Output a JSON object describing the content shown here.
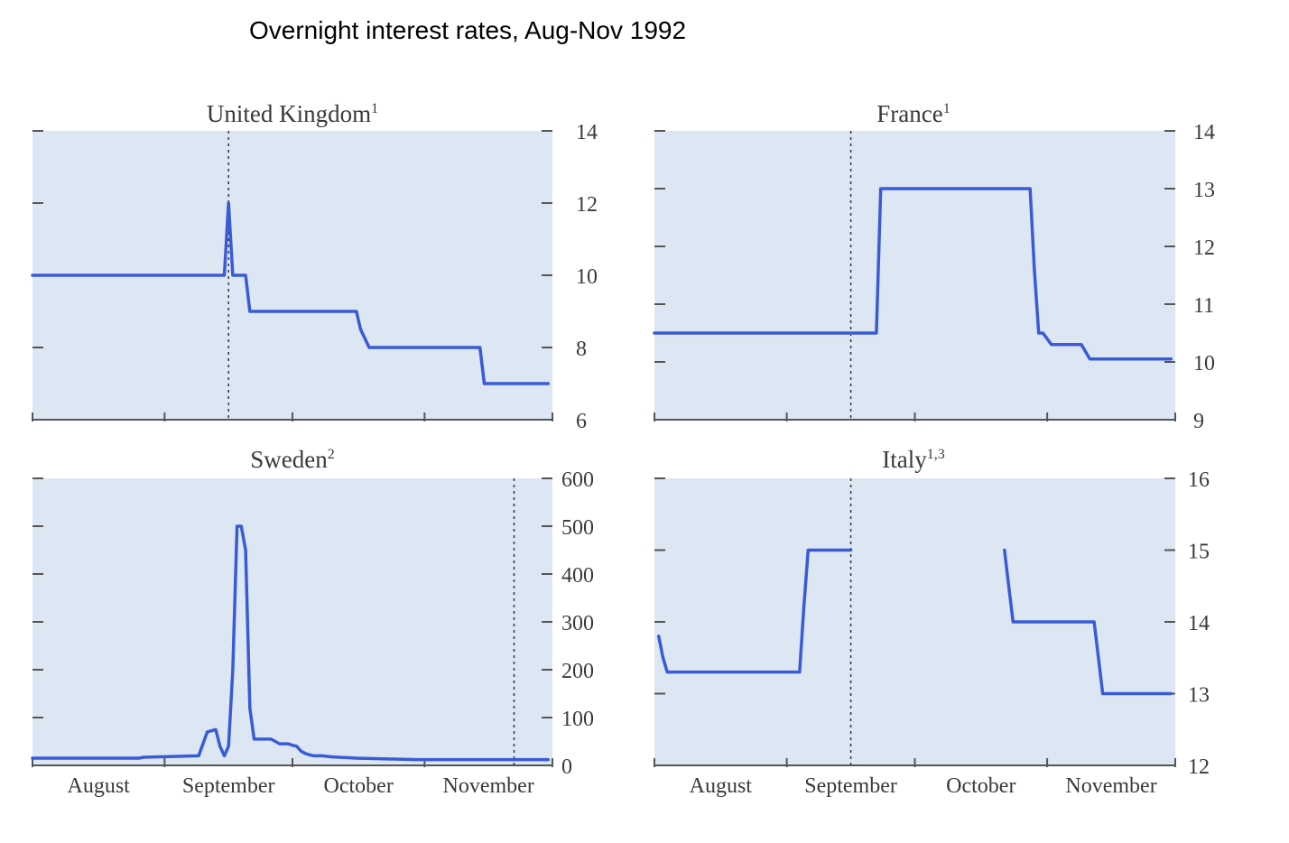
{
  "title": "Overnight interest rates, Aug-Nov 1992",
  "colors": {
    "line": "#3b5bd6",
    "plot_bg": "#dce7f3",
    "axis": "#555555",
    "text": "#3a3a3a"
  },
  "chart_data": [
    {
      "id": "uk",
      "type": "line",
      "title": "United Kingdom",
      "title_sup": "1",
      "x_unit": "day (0 = 1 Aug 1992)",
      "xlim": [
        0,
        122
      ],
      "month_boundaries": [
        0,
        31,
        61,
        92,
        122
      ],
      "months": [
        "August",
        "September",
        "October",
        "November"
      ],
      "month_labels_shown": false,
      "ylim": [
        6,
        14
      ],
      "yticks": [
        6,
        8,
        10,
        12,
        14
      ],
      "minor_yticks": [
        8,
        10,
        12,
        14
      ],
      "reference_x": 46,
      "x": [
        0,
        45,
        46,
        47,
        48,
        50,
        51,
        60,
        61,
        76,
        77,
        79,
        80,
        105,
        106,
        107,
        121
      ],
      "y": [
        10,
        10,
        12,
        10,
        10,
        10,
        9,
        9,
        9,
        9,
        8.5,
        8,
        8,
        8,
        7,
        7,
        7
      ]
    },
    {
      "id": "france",
      "type": "line",
      "title": "France",
      "title_sup": "1",
      "x_unit": "day (0 = 1 Aug 1992)",
      "xlim": [
        0,
        122
      ],
      "month_boundaries": [
        0,
        31,
        61,
        92,
        122
      ],
      "months": [
        "August",
        "September",
        "October",
        "November"
      ],
      "month_labels_shown": false,
      "ylim": [
        9,
        14
      ],
      "yticks": [
        9,
        10,
        11,
        12,
        13,
        14
      ],
      "minor_yticks": [
        10,
        11,
        12,
        13,
        14
      ],
      "reference_x": 46,
      "x": [
        0,
        52,
        53,
        88,
        89,
        90,
        91,
        93,
        100,
        102,
        121
      ],
      "y": [
        10.5,
        10.5,
        13,
        13,
        11.6,
        10.5,
        10.5,
        10.3,
        10.3,
        10.05,
        10.05
      ]
    },
    {
      "id": "sweden",
      "type": "line",
      "title": "Sweden",
      "title_sup": "2",
      "x_unit": "day (0 = 1 Aug 1992)",
      "xlim": [
        0,
        122
      ],
      "month_boundaries": [
        0,
        31,
        61,
        92,
        122
      ],
      "months": [
        "August",
        "September",
        "October",
        "November"
      ],
      "month_labels_shown": true,
      "ylim": [
        0,
        600
      ],
      "yticks": [
        0,
        100,
        200,
        300,
        400,
        500,
        600
      ],
      "minor_yticks": [
        100,
        200,
        300,
        400,
        500,
        600
      ],
      "reference_x": 113,
      "x": [
        0,
        25,
        26,
        39,
        40,
        41,
        43,
        44,
        45,
        46,
        47,
        48,
        49,
        50,
        51,
        52,
        53,
        54,
        55,
        56,
        57,
        58,
        60,
        61,
        62,
        63,
        64,
        65,
        66,
        68,
        70,
        76,
        90,
        121
      ],
      "y": [
        15,
        15,
        17,
        20,
        45,
        70,
        75,
        40,
        20,
        40,
        200,
        500,
        500,
        450,
        120,
        55,
        55,
        55,
        55,
        55,
        50,
        45,
        45,
        42,
        40,
        30,
        25,
        22,
        20,
        20,
        18,
        15,
        12,
        12
      ]
    },
    {
      "id": "italy",
      "type": "line",
      "title": "Italy",
      "title_sup": "1,3",
      "x_unit": "day (0 = 1 Aug 1992)",
      "xlim": [
        0,
        122
      ],
      "month_boundaries": [
        0,
        31,
        61,
        92,
        122
      ],
      "months": [
        "August",
        "September",
        "October",
        "November"
      ],
      "month_labels_shown": true,
      "ylim": [
        12,
        16
      ],
      "yticks": [
        12,
        13,
        14,
        15,
        16
      ],
      "minor_yticks": [
        13,
        14,
        15,
        16
      ],
      "reference_x": 46,
      "x": [
        1,
        2,
        3,
        34,
        35,
        36,
        46,
        49,
        82,
        83,
        84,
        103,
        104,
        105,
        121
      ],
      "y": [
        13.8,
        13.5,
        13.3,
        13.3,
        14.2,
        15,
        15,
        null,
        15,
        14.5,
        14,
        14,
        13.5,
        13,
        13
      ]
    }
  ]
}
